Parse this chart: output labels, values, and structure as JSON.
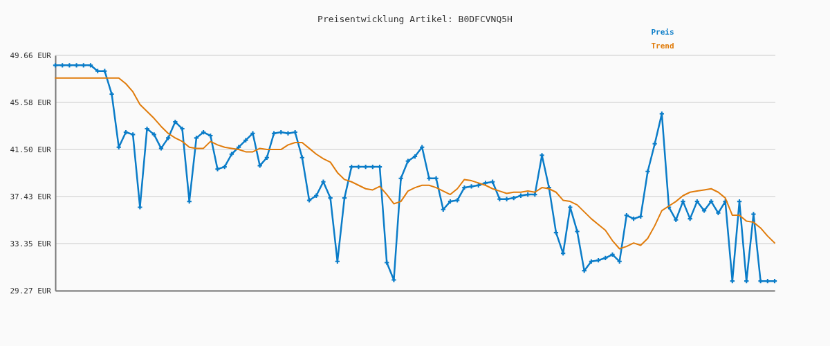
{
  "chart_data": {
    "type": "line",
    "title": "Preisentwicklung Artikel: B0DFCVNQ5H",
    "categories": [
      null,
      null,
      null,
      null,
      null,
      null,
      null,
      null,
      null,
      null,
      null,
      null,
      null,
      null,
      null,
      null,
      null,
      null,
      null,
      null,
      null,
      null,
      null,
      null,
      null,
      null,
      null,
      null,
      null,
      null,
      null,
      null,
      null,
      null,
      null,
      null,
      null,
      null,
      null,
      null,
      null,
      null,
      null,
      null,
      null,
      null,
      null,
      null,
      null,
      null,
      null,
      null,
      null,
      null,
      null,
      null,
      null,
      null,
      null,
      null,
      null,
      null,
      null,
      null,
      null,
      null,
      null,
      null,
      null,
      null,
      null,
      null,
      null,
      null,
      null,
      null,
      null,
      null,
      null,
      null,
      null,
      null,
      null,
      null,
      null,
      null,
      null,
      null,
      null,
      null,
      null,
      null,
      null,
      null,
      null,
      null,
      null,
      null,
      null,
      null,
      null,
      null,
      null
    ],
    "series": [
      {
        "name": "Preis",
        "color": "#0a7cc8",
        "marker": "cross",
        "values": [
          48.8,
          48.8,
          48.8,
          48.8,
          48.8,
          48.8,
          48.3,
          48.3,
          46.3,
          41.7,
          43.0,
          42.8,
          36.5,
          43.3,
          42.8,
          41.6,
          42.5,
          43.9,
          43.3,
          37.0,
          42.5,
          43.0,
          42.7,
          39.8,
          40.0,
          41.1,
          41.7,
          42.3,
          42.9,
          40.1,
          40.8,
          42.9,
          43.0,
          42.9,
          43.0,
          40.8,
          37.1,
          37.5,
          38.7,
          37.3,
          31.8,
          37.3,
          40.0,
          40.0,
          40.0,
          40.0,
          40.0,
          31.7,
          30.2,
          39.0,
          40.5,
          40.9,
          41.7,
          39.0,
          39.0,
          36.3,
          37.0,
          37.1,
          38.2,
          38.3,
          38.4,
          38.6,
          38.7,
          37.2,
          37.2,
          37.3,
          37.5,
          37.6,
          37.6,
          41.0,
          38.2,
          34.3,
          32.5,
          36.5,
          34.4,
          31.0,
          31.8,
          31.9,
          32.1,
          32.4,
          31.8,
          35.8,
          35.5,
          35.7,
          39.6,
          42.0,
          44.6,
          36.5,
          35.4,
          37.0,
          35.5,
          37.0,
          36.2,
          37.0,
          36.0,
          37.0,
          30.1,
          37.0,
          30.1,
          35.9,
          30.1,
          30.1,
          30.1
        ]
      },
      {
        "name": "Trend",
        "color": "#e07b0a",
        "marker": "none",
        "values": [
          47.7,
          47.7,
          47.7,
          47.7,
          47.7,
          47.7,
          47.7,
          47.7,
          47.7,
          47.7,
          47.2,
          46.5,
          45.4,
          44.8,
          44.2,
          43.5,
          42.9,
          42.5,
          42.2,
          41.7,
          41.6,
          41.6,
          42.2,
          41.9,
          41.7,
          41.6,
          41.5,
          41.3,
          41.3,
          41.6,
          41.5,
          41.5,
          41.5,
          41.9,
          42.1,
          42.1,
          41.6,
          41.1,
          40.7,
          40.4,
          39.5,
          38.9,
          38.7,
          38.4,
          38.1,
          38.0,
          38.3,
          37.6,
          36.8,
          37.0,
          37.9,
          38.2,
          38.4,
          38.4,
          38.2,
          37.9,
          37.6,
          38.1,
          38.9,
          38.8,
          38.6,
          38.4,
          38.1,
          37.9,
          37.7,
          37.8,
          37.8,
          37.9,
          37.8,
          38.2,
          38.1,
          37.8,
          37.1,
          37.0,
          36.7,
          36.1,
          35.5,
          35.0,
          34.5,
          33.6,
          32.9,
          33.1,
          33.4,
          33.2,
          33.8,
          34.9,
          36.2,
          36.6,
          37.0,
          37.5,
          37.8,
          37.9,
          38.0,
          38.1,
          37.8,
          37.3,
          35.8,
          35.8,
          35.3,
          35.2,
          34.7,
          34.0,
          33.4
        ]
      }
    ],
    "ylim": [
      29.27,
      49.66
    ],
    "yticks": [
      {
        "value": 29.27,
        "label": "29.27 EUR"
      },
      {
        "value": 33.35,
        "label": "33.35 EUR"
      },
      {
        "value": 37.43,
        "label": "37.43 EUR"
      },
      {
        "value": 41.5,
        "label": "41.50 EUR"
      },
      {
        "value": 45.58,
        "label": "45.58 EUR"
      },
      {
        "value": 49.66,
        "label": "49.66 EUR"
      }
    ],
    "grid": "y",
    "legend": "top right",
    "line_style": "solid"
  }
}
